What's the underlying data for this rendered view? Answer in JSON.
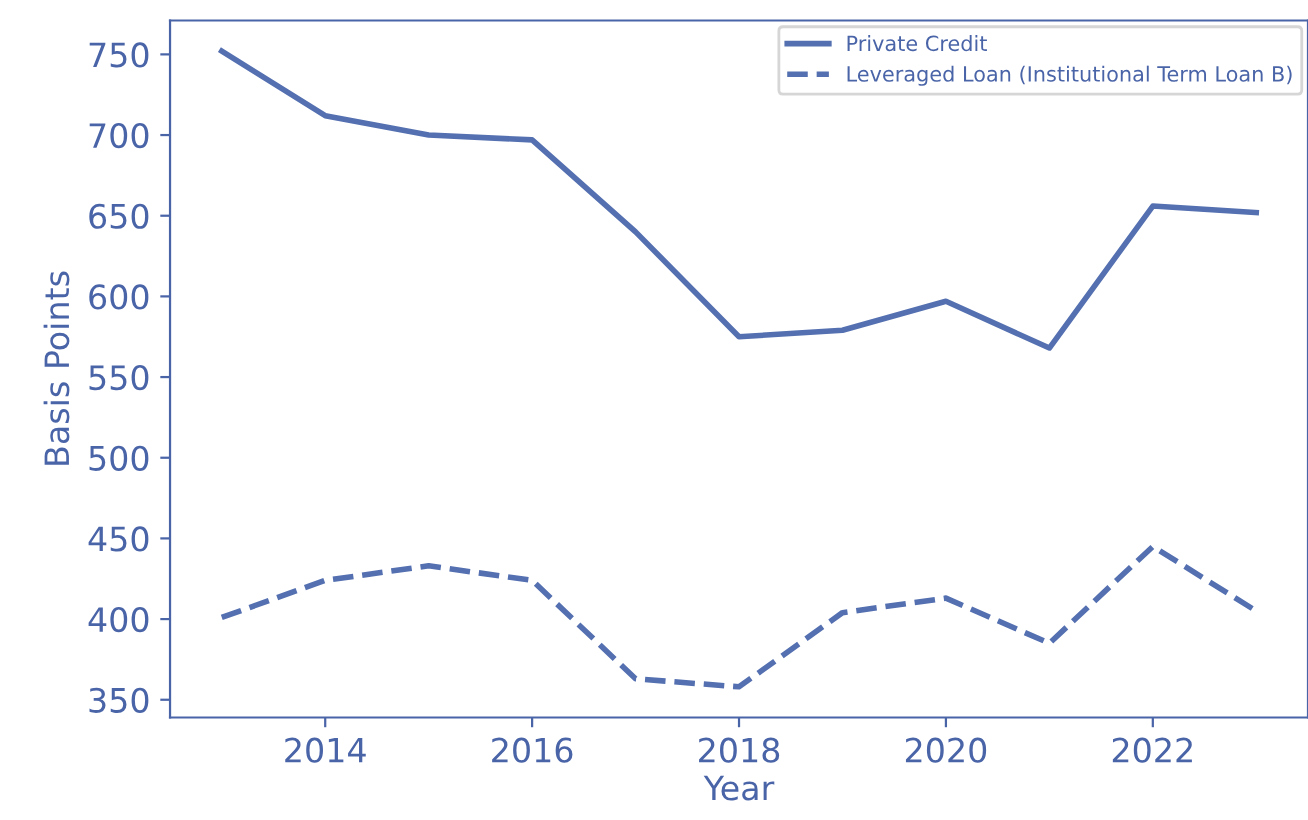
{
  "chart_data": {
    "type": "line",
    "xlabel": "Year",
    "ylabel": "Basis Points",
    "x": [
      2013,
      2014,
      2015,
      2016,
      2017,
      2018,
      2019,
      2020,
      2021,
      2022,
      2023
    ],
    "series": [
      {
        "name": "Private Credit",
        "color": "#5470b0",
        "line_style": "solid",
        "values": [
          752,
          712,
          700,
          697,
          640,
          575,
          579,
          597,
          568,
          656,
          652
        ]
      },
      {
        "name": "Leveraged Loan (Institutional Term Loan B)",
        "color": "#5470b0",
        "line_style": "dashed",
        "values": [
          401,
          424,
          433,
          424,
          363,
          358,
          404,
          413,
          385,
          445,
          405
        ]
      }
    ],
    "xlim": [
      2012.5,
      2023.5
    ],
    "xticks": [
      2014,
      2016,
      2018,
      2020,
      2022
    ],
    "ylim": [
      339,
      771
    ],
    "yticks": [
      350,
      400,
      450,
      500,
      550,
      600,
      650,
      700,
      750
    ],
    "grid": false,
    "legend": "top right",
    "marker": "none"
  }
}
